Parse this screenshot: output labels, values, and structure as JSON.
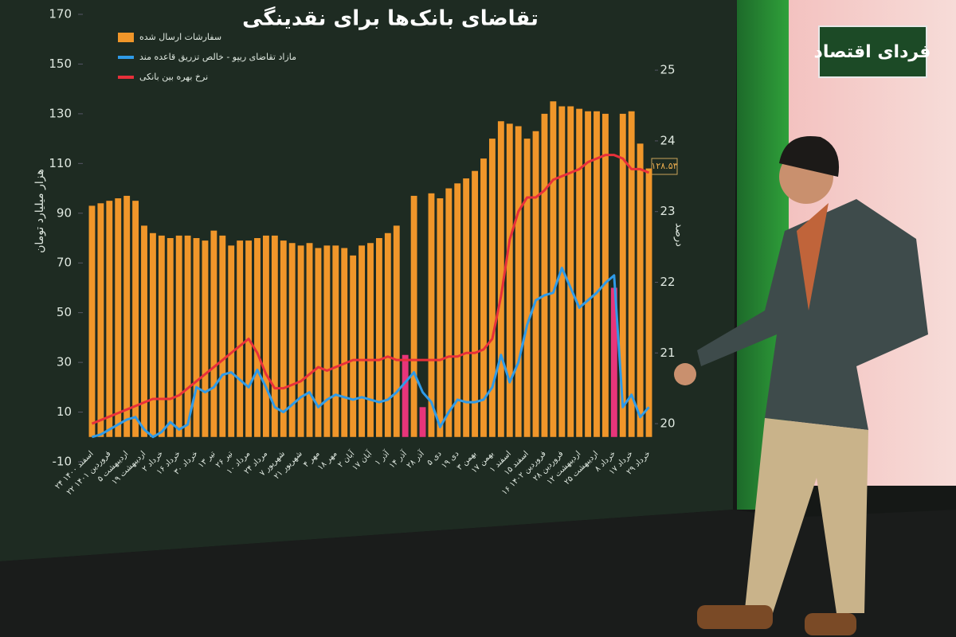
{
  "brand": "فردای اقتصاد",
  "chart_data": {
    "type": "bar",
    "title": "تقاضای بانک‌ها برای نقدینگی",
    "y_label": "هزار میلیارد تومان",
    "y2_label": "درصد",
    "callout": "۱۲۸.۵۳",
    "categories": [
      "۲۴ اسفند ۱۴۰۰",
      null,
      "۲۲ فروردین ۱۴۰۱",
      null,
      "۵ اردیبهشت",
      null,
      "۱۹ اردیبهشت",
      null,
      "۲ خرداد",
      null,
      "۱۶ خرداد",
      null,
      "۳۰ خرداد",
      null,
      "۱۳ تیر",
      null,
      "۲۶ تیر",
      null,
      "۱۰ مرداد",
      null,
      "۲۴ مرداد",
      null,
      "۷ شهریور",
      null,
      "۲۱ شهریور",
      null,
      "۴ مهر",
      null,
      "۱۸ مهر",
      null,
      "۲ آبان",
      null,
      "۱۷ آبان",
      null,
      "۱ آذر",
      null,
      "۱۴ آذر",
      null,
      "۲۸ آذر",
      null,
      "۵ دی",
      null,
      "۱۹ دی",
      null,
      "۳ بهمن",
      null,
      "۱۷ بهمن",
      null,
      "۱ اسفند",
      null,
      "۱۵ اسفند",
      null,
      "۱۶ فروردین ۱۴۰۲",
      null,
      "۲۸ فروردین",
      null,
      "۱۲ اردیبهشت",
      null,
      "۲۵ اردیبهشت",
      null,
      "۸ خرداد",
      null,
      "۱۷ خرداد",
      null,
      "۲۹ خرداد"
    ],
    "series": [
      {
        "name": "سفارشات ارسال شده",
        "color": "#f0962a",
        "highlight_color": "#e8357a",
        "highlight_indices": [
          36,
          38,
          60
        ],
        "values": [
          93,
          94,
          95,
          96,
          97,
          95,
          85,
          82,
          81,
          80,
          81,
          81,
          80,
          79,
          83,
          81,
          77,
          79,
          79,
          80,
          81,
          81,
          79,
          78,
          77,
          78,
          76,
          77,
          77,
          76,
          73,
          77,
          78,
          80,
          82,
          85,
          33,
          97,
          12,
          98,
          96,
          100,
          102,
          104,
          107,
          112,
          120,
          127,
          126,
          125,
          120,
          123,
          130,
          135,
          133,
          133,
          132,
          131,
          131,
          130,
          60,
          130,
          131,
          118,
          108
        ]
      },
      {
        "name": "مازاد تقاضای ریپو - خالص تزریق قاعده مند",
        "color": "#2f9be8",
        "type": "line",
        "values": [
          0,
          1,
          3,
          5,
          7,
          8,
          3,
          0,
          2,
          6,
          3,
          5,
          20,
          18,
          20,
          25,
          26,
          23,
          20,
          27,
          20,
          12,
          10,
          13,
          16,
          18,
          12,
          15,
          17,
          16,
          15,
          16,
          15,
          14,
          15,
          18,
          22,
          26,
          18,
          14,
          4,
          10,
          15,
          14,
          14,
          15,
          20,
          33,
          22,
          30,
          45,
          55,
          57,
          58,
          68,
          60,
          52,
          55,
          58,
          62,
          65,
          12,
          17,
          8,
          12
        ]
      },
      {
        "name": "نرخ بهره بین بانکی",
        "color": "#e8303a",
        "type": "line",
        "axis": "y2",
        "values": [
          20.0,
          20.05,
          20.1,
          20.15,
          20.2,
          20.25,
          20.3,
          20.35,
          20.35,
          20.35,
          20.4,
          20.5,
          20.6,
          20.7,
          20.8,
          20.9,
          21.0,
          21.1,
          21.2,
          21.0,
          20.7,
          20.5,
          20.5,
          20.55,
          20.6,
          20.7,
          20.8,
          20.75,
          20.8,
          20.85,
          20.9,
          20.9,
          20.9,
          20.9,
          20.95,
          20.9,
          20.9,
          20.9,
          20.9,
          20.9,
          20.9,
          20.95,
          20.95,
          21.0,
          21.0,
          21.05,
          21.2,
          21.8,
          22.6,
          23.0,
          23.2,
          23.2,
          23.3,
          23.45,
          23.5,
          23.55,
          23.6,
          23.7,
          23.75,
          23.8,
          23.8,
          23.75,
          23.6,
          23.6,
          23.55
        ]
      }
    ],
    "ylim": [
      -10,
      170
    ],
    "yticks": [
      -10,
      10,
      30,
      50,
      70,
      90,
      110,
      130,
      150,
      170
    ],
    "y2lim": [
      19.46,
      25.79
    ],
    "y2ticks": [
      20,
      21,
      22,
      23,
      24,
      25
    ],
    "grid": false
  }
}
